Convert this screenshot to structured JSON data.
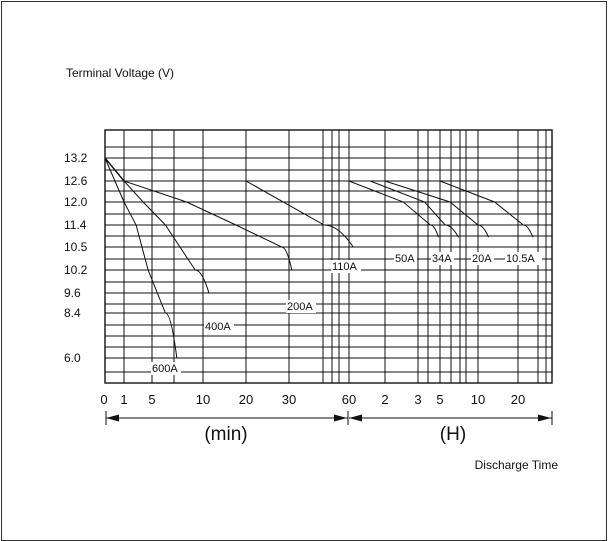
{
  "chart_data": {
    "type": "line",
    "title": "",
    "ylabel": "Terminal Voltage (V)",
    "xlabel": "Discharge Time",
    "x_scale": "log",
    "y_scale": "nonuniform",
    "grid": true,
    "y_ticks": [
      "13.2",
      "12.6",
      "12.0",
      "11.4",
      "10.5",
      "10.2",
      "9.6",
      "8.4",
      "6.0"
    ],
    "x_ticks": [
      {
        "label": "0",
        "minutes": 0
      },
      {
        "label": "1",
        "minutes": 1
      },
      {
        "label": "5",
        "minutes": 5
      },
      {
        "label": "10",
        "minutes": 10
      },
      {
        "label": "20",
        "minutes": 20
      },
      {
        "label": "30",
        "minutes": 30
      },
      {
        "label": "60",
        "minutes": 60
      },
      {
        "label": "2",
        "minutes": 120
      },
      {
        "label": "3",
        "minutes": 180
      },
      {
        "label": "5",
        "minutes": 300
      },
      {
        "label": "10",
        "minutes": 600
      },
      {
        "label": "20",
        "minutes": 1200
      }
    ],
    "unit_min_label": "(min)",
    "unit_hour_label": "(H)",
    "series": [
      {
        "name": "600A",
        "points": [
          [
            0,
            13.2
          ],
          [
            1,
            12.0
          ],
          [
            2,
            11.4
          ],
          [
            4,
            10.2
          ],
          [
            6,
            8.4
          ],
          [
            7,
            6.0
          ]
        ]
      },
      {
        "name": "400A",
        "points": [
          [
            0,
            13.2
          ],
          [
            1,
            12.6
          ],
          [
            3,
            12.0
          ],
          [
            6,
            11.4
          ],
          [
            9,
            10.2
          ],
          [
            11,
            9.6
          ]
        ]
      },
      {
        "name": "200A",
        "points": [
          [
            0,
            13.2
          ],
          [
            1,
            12.6
          ],
          [
            8,
            12.0
          ],
          [
            17,
            11.4
          ],
          [
            28,
            10.5
          ],
          [
            31,
            10.2
          ]
        ]
      },
      {
        "name": "110A",
        "points": [
          [
            0,
            13.2
          ],
          [
            1,
            12.6
          ],
          [
            20,
            12.6
          ],
          [
            45,
            11.4
          ],
          [
            65,
            10.5
          ]
        ]
      },
      {
        "name": "50A",
        "points": [
          [
            0,
            13.2
          ],
          [
            1,
            12.6
          ],
          [
            60,
            12.6
          ],
          [
            150,
            12.0
          ],
          [
            240,
            11.4
          ],
          [
            290,
            10.9
          ]
        ]
      },
      {
        "name": "34A",
        "points": [
          [
            0,
            13.2
          ],
          [
            1,
            12.6
          ],
          [
            90,
            12.6
          ],
          [
            210,
            12.0
          ],
          [
            330,
            11.4
          ],
          [
            420,
            10.9
          ]
        ]
      },
      {
        "name": "20A",
        "points": [
          [
            0,
            13.2
          ],
          [
            1,
            12.6
          ],
          [
            120,
            12.6
          ],
          [
            360,
            12.0
          ],
          [
            600,
            11.4
          ],
          [
            720,
            10.9
          ]
        ]
      },
      {
        "name": "10.5A",
        "points": [
          [
            0,
            13.2
          ],
          [
            1,
            12.6
          ],
          [
            300,
            12.6
          ],
          [
            800,
            12.0
          ],
          [
            1300,
            11.4
          ],
          [
            1500,
            10.9
          ]
        ]
      }
    ]
  }
}
